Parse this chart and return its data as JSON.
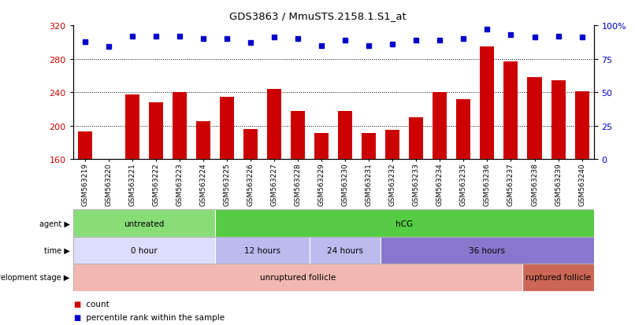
{
  "title": "GDS3863 / MmuSTS.2158.1.S1_at",
  "samples": [
    "GSM563219",
    "GSM563220",
    "GSM563221",
    "GSM563222",
    "GSM563223",
    "GSM563224",
    "GSM563225",
    "GSM563226",
    "GSM563227",
    "GSM563228",
    "GSM563229",
    "GSM563230",
    "GSM563231",
    "GSM563232",
    "GSM563233",
    "GSM563234",
    "GSM563235",
    "GSM563236",
    "GSM563237",
    "GSM563238",
    "GSM563239",
    "GSM563240"
  ],
  "counts": [
    193,
    160,
    237,
    228,
    240,
    205,
    235,
    196,
    244,
    218,
    191,
    218,
    191,
    195,
    210,
    240,
    232,
    295,
    277,
    258,
    254,
    241
  ],
  "percentile": [
    88,
    84,
    92,
    92,
    92,
    90,
    90,
    87,
    91,
    90,
    85,
    89,
    85,
    86,
    89,
    89,
    90,
    97,
    93,
    91,
    92,
    91
  ],
  "ymin": 160,
  "ymax": 320,
  "yticks": [
    160,
    200,
    240,
    280,
    320
  ],
  "right_yticks": [
    0,
    25,
    50,
    75,
    100
  ],
  "bar_color": "#cc0000",
  "dot_color": "#0000cc",
  "bar_width": 0.6,
  "agent_spans": [
    {
      "label": "untreated",
      "start": 0,
      "end": 6,
      "color": "#88dd77"
    },
    {
      "label": "hCG",
      "start": 6,
      "end": 22,
      "color": "#55cc44"
    }
  ],
  "time_spans": [
    {
      "label": "0 hour",
      "start": 0,
      "end": 6,
      "color": "#ddddff"
    },
    {
      "label": "12 hours",
      "start": 6,
      "end": 10,
      "color": "#bbbbee"
    },
    {
      "label": "24 hours",
      "start": 10,
      "end": 13,
      "color": "#bbbbee"
    },
    {
      "label": "36 hours",
      "start": 13,
      "end": 22,
      "color": "#8877cc"
    }
  ],
  "dev_spans": [
    {
      "label": "unruptured follicle",
      "start": 0,
      "end": 19,
      "color": "#f0b8b0"
    },
    {
      "label": "ruptured follicle",
      "start": 19,
      "end": 22,
      "color": "#cc6655"
    }
  ],
  "legend_items": [
    {
      "color": "#cc0000",
      "label": "count"
    },
    {
      "color": "#0000cc",
      "label": "percentile rank within the sample"
    }
  ]
}
